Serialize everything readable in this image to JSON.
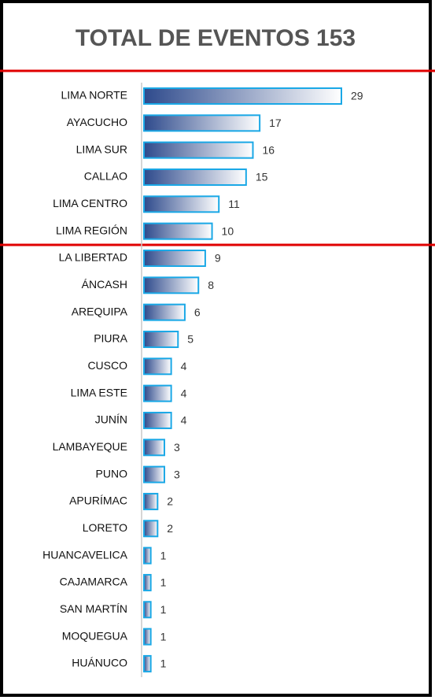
{
  "chart_data": {
    "type": "bar",
    "orientation": "horizontal",
    "title": "TOTAL DE EVENTOS 153",
    "categories": [
      "LIMA NORTE",
      "AYACUCHO",
      "LIMA SUR",
      "CALLAO",
      "LIMA CENTRO",
      "LIMA REGIÓN",
      "LA LIBERTAD",
      "ÁNCASH",
      "AREQUIPA",
      "PIURA",
      "CUSCO",
      "LIMA ESTE",
      "JUNÍN",
      "LAMBAYEQUE",
      "PUNO",
      "APURÍMAC",
      "LORETO",
      "HUANCAVELICA",
      "CAJAMARCA",
      "SAN MARTÍN",
      "MOQUEGUA",
      "HUÁNUCO"
    ],
    "values": [
      29,
      17,
      16,
      15,
      11,
      10,
      9,
      8,
      6,
      5,
      4,
      4,
      4,
      3,
      3,
      2,
      2,
      1,
      1,
      1,
      1,
      1
    ],
    "color": "#2e4a8c",
    "edge_color": "#1aa8e6"
  }
}
